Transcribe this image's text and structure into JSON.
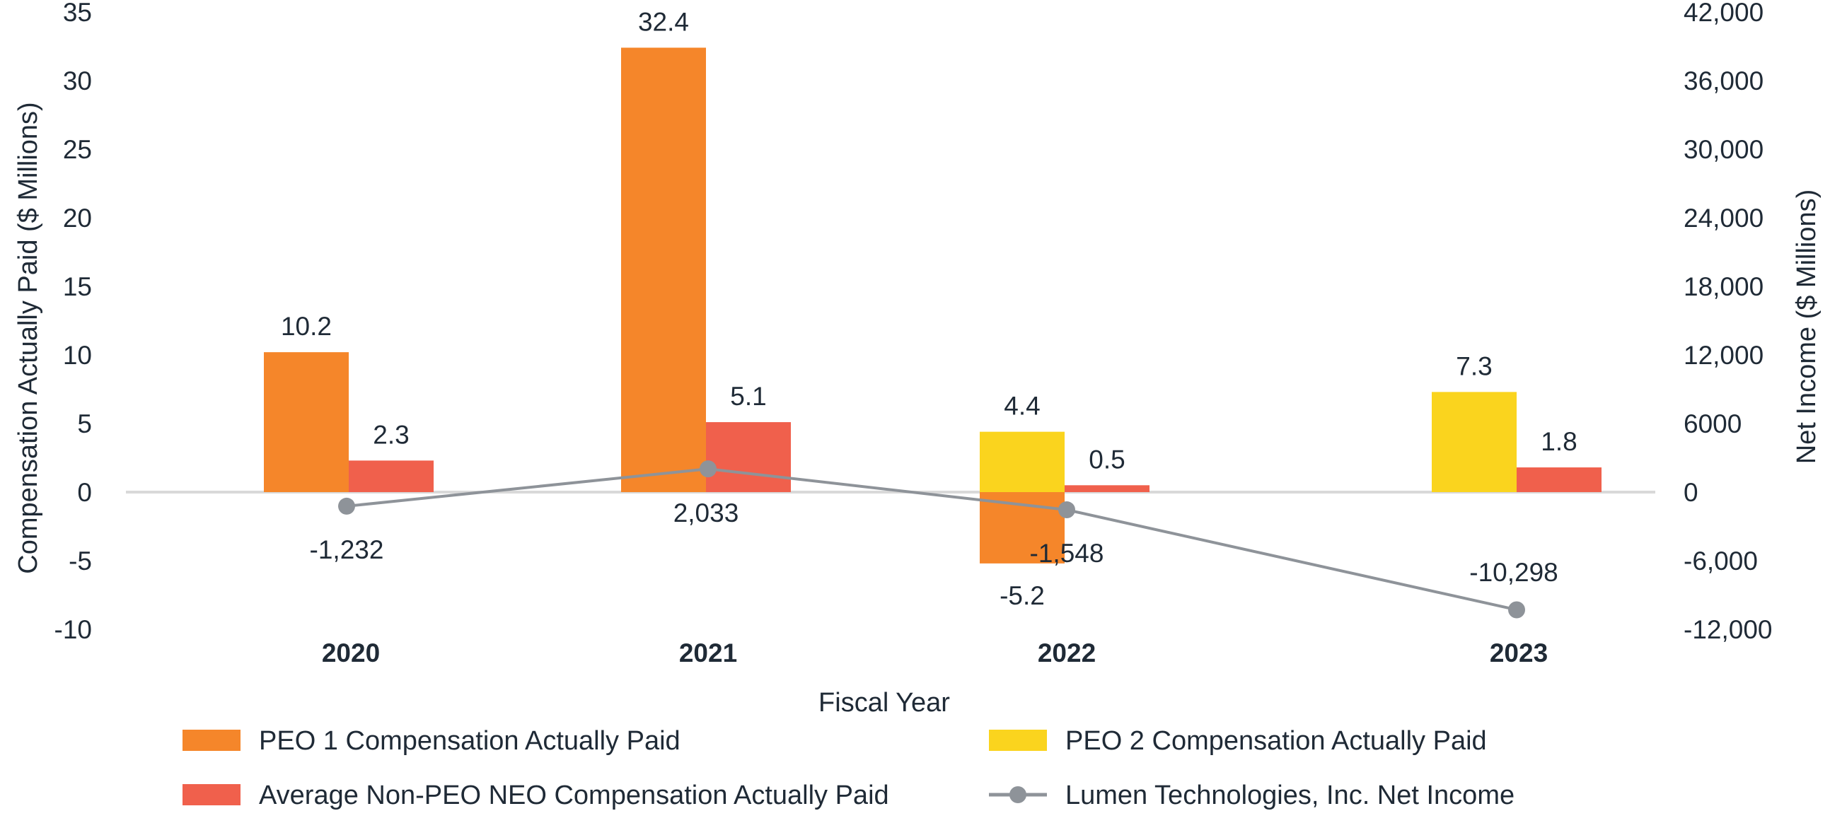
{
  "chart_data": {
    "type": "bar",
    "xlabel": "Fiscal Year",
    "ylabel": "Compensation Actually Paid ($ Millions)",
    "y2label": "Net Income ($ Millions)",
    "ylim": [
      -10,
      35
    ],
    "y_ticks": [
      35,
      30,
      25,
      20,
      15,
      10,
      5,
      0,
      -5,
      -10
    ],
    "y2lim": [
      -12000,
      42000
    ],
    "y2_ticks": [
      "42,000",
      "36,000",
      "30,000",
      "24,000",
      "18,000",
      "12,000",
      "6000",
      "0",
      "-6,000",
      "-12,000"
    ],
    "categories": [
      "2020",
      "2021",
      "2022",
      "2023"
    ],
    "series": [
      {
        "name": "PEO 1 Compensation Actually Paid",
        "type": "bar",
        "color": "#F5862A",
        "values": [
          10.2,
          32.4,
          -5.2,
          null
        ],
        "labels": [
          "10.2",
          "32.4",
          "-5.2",
          null
        ]
      },
      {
        "name": "PEO 2 Compensation Actually Paid",
        "type": "bar",
        "color": "#FAD41E",
        "values": [
          null,
          null,
          4.4,
          7.3
        ],
        "labels": [
          null,
          null,
          "4.4",
          "7.3"
        ]
      },
      {
        "name": "Average Non-PEO NEO Compensation Actually Paid",
        "type": "bar",
        "color": "#F0604C",
        "values": [
          2.3,
          5.1,
          0.5,
          1.8
        ],
        "labels": [
          "2.3",
          "5.1",
          "0.5",
          "1.8"
        ]
      },
      {
        "name": "Lumen Technologies, Inc. Net Income",
        "type": "line",
        "axis": "right",
        "color": "#8E9399",
        "values": [
          -1232,
          2033,
          -1548,
          -10298
        ],
        "labels": [
          "-1,232",
          "2,033",
          "-1,548",
          "-10,298"
        ]
      }
    ],
    "legend": [
      {
        "name": "PEO 1 Compensation Actually Paid",
        "color": "#F5862A",
        "kind": "box"
      },
      {
        "name": "PEO 2 Compensation Actually Paid",
        "color": "#FAD41E",
        "kind": "box"
      },
      {
        "name": "Average Non-PEO NEO Compensation Actually Paid",
        "color": "#F0604C",
        "kind": "box"
      },
      {
        "name": "Lumen Technologies, Inc. Net Income",
        "color": "#8E9399",
        "kind": "line"
      }
    ]
  }
}
